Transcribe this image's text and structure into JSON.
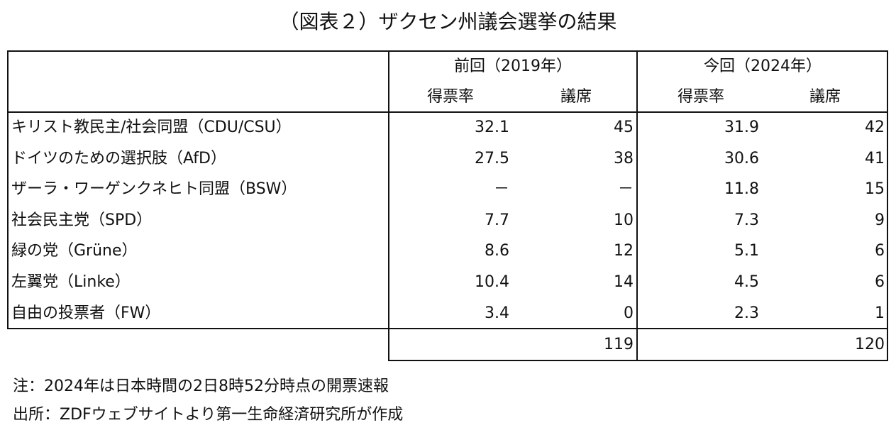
{
  "title": "（図表２）ザクセン州議会選挙の結果",
  "table": {
    "header": {
      "groups": [
        "前回（2019年）",
        "今回（2024年）"
      ],
      "subheaders": [
        "得票率",
        "議席",
        "得票率",
        "議席"
      ]
    },
    "rows": [
      [
        "キリスト教民主/社会同盟（CDU/CSU）",
        "32.1",
        "45",
        "31.9",
        "42"
      ],
      [
        "ドイツのための選択肢（AfD）",
        "27.5",
        "38",
        "30.6",
        "41"
      ],
      [
        "ザーラ・ワーゲンクネヒト同盟（BSW）",
        "－",
        "－",
        "11.8",
        "15"
      ],
      [
        "社会民主党（SPD）",
        "7.7",
        "10",
        "7.3",
        "9"
      ],
      [
        "緑の党（Grüne）",
        "8.6",
        "12",
        "5.1",
        "6"
      ],
      [
        "左翼党（Linke）",
        "10.4",
        "14",
        "4.5",
        "6"
      ],
      [
        "自由の投票者（FW）",
        "3.4",
        "0",
        "2.3",
        "1"
      ]
    ],
    "totals": [
      "119",
      "120"
    ]
  },
  "notes": [
    "注：2024年は日本時間の2日8時52分時点の開票速報",
    "出所：ZDFウェブサイトより第一生命経済研究所が作成"
  ]
}
